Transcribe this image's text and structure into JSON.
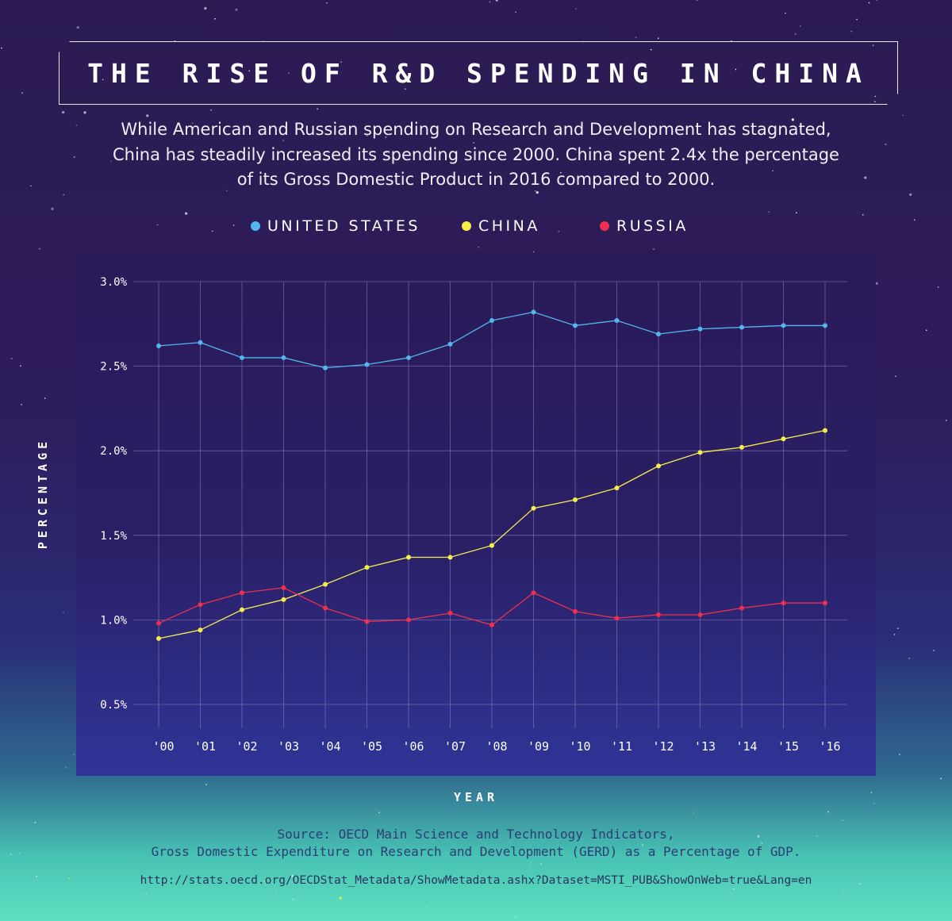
{
  "title": "THE RISE OF R&D SPENDING IN CHINA",
  "subtitle": "While American and Russian spending on Research and Development has stagnated, China has steadily increased its spending since 2000. China spent 2.4x the percentage of its Gross Domestic Product in 2016 compared to 2000.",
  "source": {
    "line1": "Source: OECD Main Science and Technology Indicators,",
    "line2": "Gross Domestic Expenditure on Research and Development (GERD) as a Percentage of GDP.",
    "url": "http://stats.oecd.org/OECDStat_Metadata/ShowMetadata.ashx?Dataset=MSTI_PUB&ShowOnWeb=true&Lang=en"
  },
  "colors": {
    "united_states": "#52b6ef",
    "china": "#f7ee4c",
    "russia": "#ee2f4e",
    "grid": "#8a7fb5",
    "label": "#ffffff"
  },
  "chart_data": {
    "type": "line",
    "title": "THE RISE OF R&D SPENDING IN CHINA",
    "xlabel": "YEAR",
    "ylabel": "PERCENTAGE",
    "categories": [
      "'00",
      "'01",
      "'02",
      "'03",
      "'04",
      "'05",
      "'06",
      "'07",
      "'08",
      "'09",
      "'10",
      "'11",
      "'12",
      "'13",
      "'14",
      "'15",
      "'16"
    ],
    "ylim": [
      0.5,
      3.0
    ],
    "yticks": [
      {
        "value": 3.0,
        "label": "3.0%"
      },
      {
        "value": 2.5,
        "label": "2.5%"
      },
      {
        "value": 2.0,
        "label": "2.0%"
      },
      {
        "value": 1.5,
        "label": "1.5%"
      },
      {
        "value": 1.0,
        "label": "1.0%"
      },
      {
        "value": 0.5,
        "label": "0.5%"
      }
    ],
    "grid": true,
    "legend_position": "top",
    "series": [
      {
        "key": "united_states",
        "name": "UNITED STATES",
        "values": [
          2.62,
          2.64,
          2.55,
          2.55,
          2.49,
          2.51,
          2.55,
          2.63,
          2.77,
          2.82,
          2.74,
          2.77,
          2.69,
          2.72,
          2.73,
          2.74,
          2.74
        ]
      },
      {
        "key": "china",
        "name": "CHINA",
        "values": [
          0.89,
          0.94,
          1.06,
          1.12,
          1.21,
          1.31,
          1.37,
          1.37,
          1.44,
          1.66,
          1.71,
          1.78,
          1.91,
          1.99,
          2.02,
          2.07,
          2.12
        ]
      },
      {
        "key": "russia",
        "name": "RUSSIA",
        "values": [
          0.98,
          1.09,
          1.16,
          1.19,
          1.07,
          0.99,
          1.0,
          1.04,
          0.97,
          1.16,
          1.05,
          1.01,
          1.03,
          1.03,
          1.07,
          1.1,
          1.1
        ]
      }
    ]
  }
}
